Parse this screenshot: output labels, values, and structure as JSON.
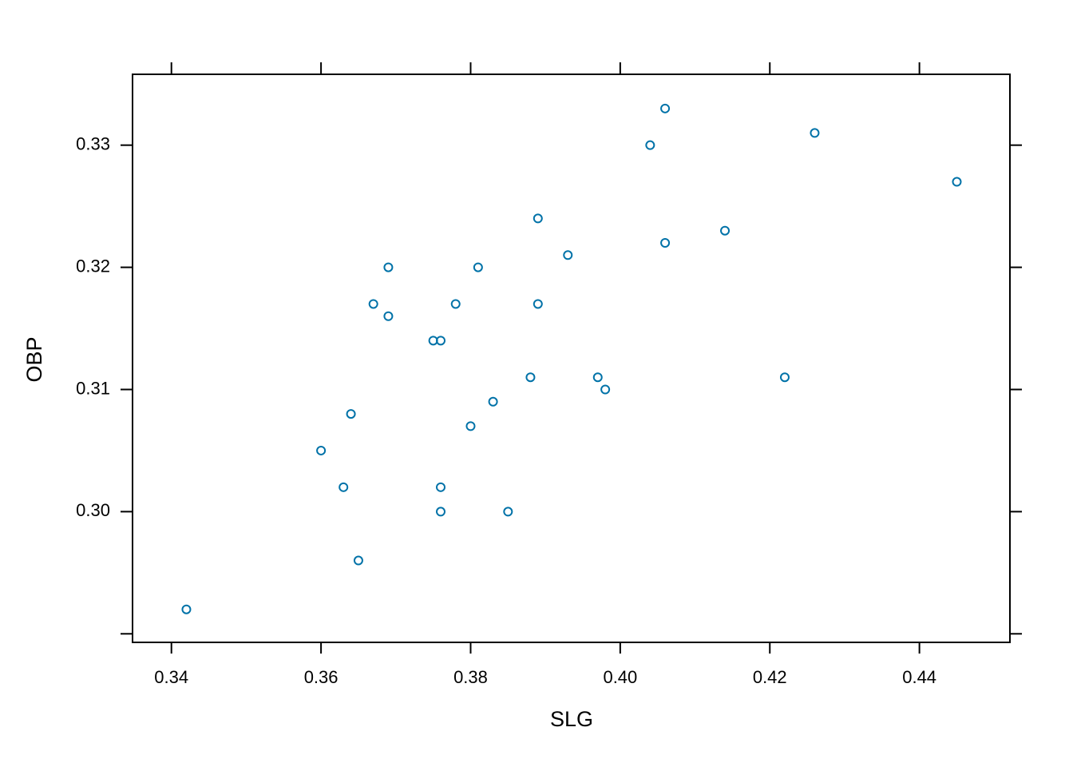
{
  "chart_data": {
    "type": "scatter",
    "xlabel": "SLG",
    "ylabel": "OBP",
    "color": "#0072a8",
    "x": [
      0.342,
      0.36,
      0.363,
      0.364,
      0.365,
      0.367,
      0.369,
      0.369,
      0.375,
      0.376,
      0.376,
      0.376,
      0.378,
      0.38,
      0.381,
      0.383,
      0.385,
      0.388,
      0.389,
      0.389,
      0.393,
      0.397,
      0.398,
      0.404,
      0.406,
      0.406,
      0.414,
      0.422,
      0.426,
      0.445
    ],
    "y": [
      0.292,
      0.305,
      0.302,
      0.308,
      0.296,
      0.317,
      0.32,
      0.316,
      0.314,
      0.314,
      0.302,
      0.3,
      0.317,
      0.307,
      0.32,
      0.309,
      0.3,
      0.311,
      0.324,
      0.317,
      0.321,
      0.311,
      0.31,
      0.33,
      0.333,
      0.322,
      0.323,
      0.311,
      0.331,
      0.327
    ],
    "xlim": [
      0.3348,
      0.4521
    ],
    "ylim": [
      0.2893,
      0.3358
    ],
    "xticks": [
      0.34,
      0.36,
      0.38,
      {
        "value": 0.4,
        "label": "0.40"
      },
      0.42,
      0.44
    ],
    "yticks": [
      {
        "value": 0.29,
        "label": null
      },
      {
        "value": 0.3,
        "label": "0.30"
      },
      0.31,
      0.32,
      0.33
    ]
  }
}
